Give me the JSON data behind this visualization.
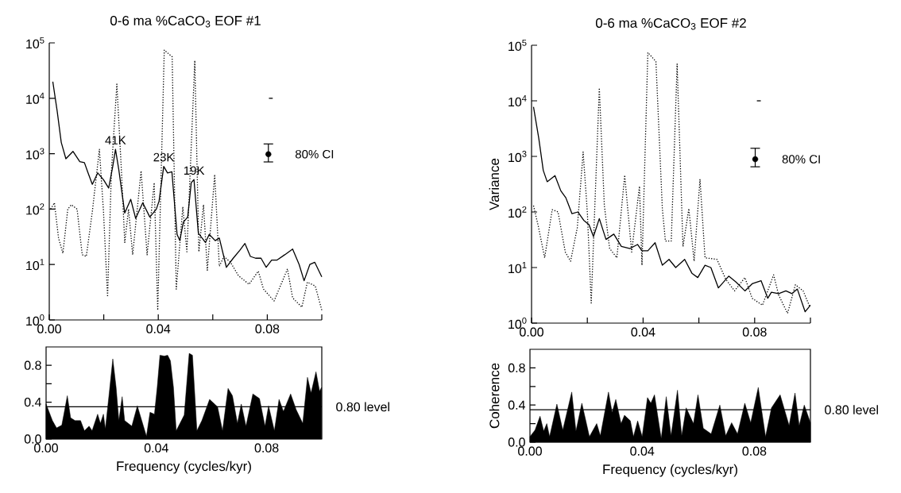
{
  "chart_data": [
    {
      "type": "line",
      "title": "0-6 ma %CaCO$_{3}$ EOF #1",
      "log": "y",
      "xlim": [
        0,
        0.1
      ],
      "ylim": [
        1,
        100000
      ],
      "xticks": [
        {
          "value": 0,
          "label": "0.00"
        },
        {
          "value": 0.02,
          "label": null
        },
        {
          "value": 0.04,
          "label": "0.04"
        },
        {
          "value": 0.06,
          "label": null
        },
        {
          "value": 0.08,
          "label": "0.08"
        },
        {
          "value": 0.1,
          "label": null
        }
      ],
      "yticks": [
        {
          "value": 1,
          "label": "10$^{0}$"
        },
        {
          "value": 10,
          "label": "10$^{1}$"
        },
        {
          "value": 100,
          "label": "10$^{2}$"
        },
        {
          "value": 1000,
          "label": "10$^{3}$"
        },
        {
          "value": 10000,
          "label": "10$^{4}$"
        },
        {
          "value": 100000,
          "label": "10$^{5}$"
        }
      ],
      "series": [
        {
          "type": "line",
          "line_style": "solid",
          "color": "#000000",
          "x": [
            0.0013,
            0.0029,
            0.0044,
            0.0061,
            0.0087,
            0.0112,
            0.0129,
            0.0141,
            0.0158,
            0.0178,
            0.0199,
            0.0218,
            0.0233,
            0.0243,
            0.0255,
            0.0277,
            0.0299,
            0.0317,
            0.0343,
            0.0369,
            0.0393,
            0.0403,
            0.042,
            0.0434,
            0.045,
            0.0469,
            0.0479,
            0.0492,
            0.0508,
            0.0521,
            0.0531,
            0.0547,
            0.0573,
            0.0587,
            0.0609,
            0.0624,
            0.065,
            0.0675,
            0.0699,
            0.0718,
            0.0738,
            0.0757,
            0.0777,
            0.0796,
            0.0816,
            0.0835,
            0.0864,
            0.0893,
            0.0917,
            0.0935,
            0.0956,
            0.0974,
            0.1
          ],
          "values": [
            20000,
            5900,
            1600,
            810,
            1100,
            720,
            690,
            470,
            280,
            450,
            340,
            240,
            590,
            1200,
            520,
            85,
            150,
            68,
            130,
            72,
            100,
            140,
            590,
            450,
            470,
            35,
            27,
            58,
            72,
            300,
            340,
            37,
            25,
            35,
            27,
            30,
            8.9,
            13,
            18,
            24,
            14,
            13,
            13,
            8.9,
            12,
            12,
            15,
            19,
            10,
            5.1,
            10,
            11,
            6.0
          ]
        },
        {
          "type": "line",
          "line_style": "dotted",
          "color": "#000000",
          "x": [
            0.0005,
            0.0019,
            0.0034,
            0.005,
            0.0068,
            0.0081,
            0.0102,
            0.0121,
            0.0136,
            0.0158,
            0.0184,
            0.0199,
            0.0214,
            0.0228,
            0.0248,
            0.0265,
            0.0277,
            0.0291,
            0.0306,
            0.0337,
            0.0359,
            0.0385,
            0.0398,
            0.0422,
            0.0451,
            0.0466,
            0.049,
            0.0505,
            0.0534,
            0.0549,
            0.0566,
            0.058,
            0.0607,
            0.0624,
            0.0641,
            0.0665,
            0.0694,
            0.0733,
            0.0767,
            0.0786,
            0.0825,
            0.0874,
            0.0893,
            0.0927,
            0.0947,
            0.0976,
            0.1
          ],
          "values": [
            100,
            130,
            30,
            16,
            100,
            120,
            100,
            15,
            14,
            90,
            1200,
            90,
            2.6,
            470,
            18000,
            470,
            25,
            100,
            15,
            490,
            15,
            300,
            1.5,
            74000,
            56000,
            3.6,
            110,
            17,
            48000,
            17,
            120,
            7.9,
            420,
            9.3,
            14,
            11,
            6.3,
            4.4,
            7.6,
            3.6,
            2.2,
            8.3,
            2.5,
            1.7,
            4.8,
            4.1,
            1.5
          ]
        },
        {
          "type": "scatter",
          "name": "80% CI",
          "marker": "circle",
          "color": "#000000",
          "x": [
            0.0804
          ],
          "values": [
            980
          ],
          "errors": [
            [
              710,
              1500
            ]
          ]
        },
        {
          "type": "line",
          "line_style": "solid",
          "color": "#000000",
          "x": [
            0.0806,
            0.082
          ],
          "values": [
            10000,
            10000
          ]
        }
      ],
      "annotations": [
        {
          "text": "41K",
          "x": 0.0243,
          "y": 1200
        },
        {
          "text": "23K",
          "x": 0.042,
          "y": 590
        },
        {
          "text": "19K",
          "x": 0.0531,
          "y": 340
        }
      ]
    },
    {
      "type": "line",
      "title": "0-6 ma %CaCO$_{3}$ EOF #2",
      "ylabel": "Variance",
      "log": "y",
      "xlim": [
        0,
        0.1
      ],
      "ylim": [
        1,
        100000
      ],
      "xticks": [
        {
          "value": 0,
          "label": "0.00"
        },
        {
          "value": 0.02,
          "label": null
        },
        {
          "value": 0.04,
          "label": "0.04"
        },
        {
          "value": 0.06,
          "label": null
        },
        {
          "value": 0.08,
          "label": "0.08"
        },
        {
          "value": 0.1,
          "label": null
        }
      ],
      "yticks": [
        {
          "value": 1,
          "label": "10$^{0}$"
        },
        {
          "value": 10,
          "label": "10$^{1}$"
        },
        {
          "value": 100,
          "label": "10$^{2}$"
        },
        {
          "value": 1000,
          "label": "10$^{3}$"
        },
        {
          "value": 10000,
          "label": "10$^{4}$"
        },
        {
          "value": 100000,
          "label": "10$^{5}$"
        }
      ],
      "series": [
        {
          "type": "line",
          "line_style": "solid",
          "color": "#000000",
          "x": [
            0.0007,
            0.0026,
            0.0042,
            0.0056,
            0.0084,
            0.0105,
            0.0123,
            0.0145,
            0.0166,
            0.0187,
            0.0206,
            0.0222,
            0.0243,
            0.0267,
            0.0295,
            0.0322,
            0.0353,
            0.038,
            0.0396,
            0.0417,
            0.0443,
            0.0469,
            0.0493,
            0.0517,
            0.0549,
            0.0575,
            0.0596,
            0.0622,
            0.0643,
            0.067,
            0.0707,
            0.0733,
            0.0765,
            0.0791,
            0.0823,
            0.0847,
            0.086,
            0.0886,
            0.0912,
            0.0934,
            0.0953,
            0.0981,
            0.1
          ],
          "values": [
            7800,
            2100,
            560,
            350,
            450,
            240,
            180,
            93,
            100,
            71,
            59,
            36,
            76,
            32,
            40,
            24,
            22,
            26,
            20,
            20,
            28,
            11,
            14,
            10,
            14,
            7.9,
            6.6,
            11,
            10,
            4.3,
            7.0,
            5.5,
            3.8,
            5.1,
            5.8,
            2.8,
            3.6,
            3.4,
            3.8,
            3.4,
            4.1,
            1.6,
            2.1
          ]
        },
        {
          "type": "line",
          "line_style": "dotted",
          "color": "#000000",
          "x": [
            0.0007,
            0.0024,
            0.0047,
            0.0074,
            0.0095,
            0.0121,
            0.014,
            0.0164,
            0.0185,
            0.02,
            0.0214,
            0.0227,
            0.0243,
            0.0261,
            0.028,
            0.0306,
            0.0334,
            0.0359,
            0.0387,
            0.0396,
            0.0417,
            0.0446,
            0.0469,
            0.048,
            0.0501,
            0.0522,
            0.0543,
            0.0564,
            0.0583,
            0.0604,
            0.0622,
            0.0665,
            0.0696,
            0.0728,
            0.0765,
            0.0791,
            0.0828,
            0.0868,
            0.0886,
            0.0918,
            0.0946,
            0.0974,
            0.0997
          ],
          "values": [
            130,
            56,
            15,
            110,
            100,
            19,
            13,
            52,
            1200,
            100,
            2.3,
            130,
            17000,
            130,
            22,
            15,
            460,
            19,
            290,
            11,
            74000,
            51000,
            115,
            30,
            30,
            46000,
            24,
            115,
            13,
            390,
            15,
            14,
            6.2,
            3.8,
            6.6,
            2.8,
            2.1,
            7.4,
            3.2,
            1.5,
            4.9,
            3.8,
            2.0
          ]
        },
        {
          "type": "scatter",
          "name": "80% CI",
          "marker": "circle",
          "color": "#000000",
          "x": [
            0.0802
          ],
          "values": [
            890
          ],
          "errors": [
            [
              650,
              1400
            ]
          ]
        },
        {
          "type": "line",
          "line_style": "solid",
          "color": "#000000",
          "x": [
            0.0808,
            0.0822
          ],
          "values": [
            10000,
            10000
          ]
        }
      ]
    },
    {
      "type": "area",
      "xlabel": "Frequency (cycles/kyr)",
      "xlim": [
        0,
        0.1
      ],
      "ylim": [
        0,
        1
      ],
      "xticks": [
        {
          "value": 0,
          "label": "0.00"
        },
        {
          "value": 0.04,
          "label": "0.04"
        },
        {
          "value": 0.08,
          "label": "0.08"
        }
      ],
      "yticks": [
        {
          "value": 0,
          "label": "0.0"
        },
        {
          "value": 0.2,
          "label": null
        },
        {
          "value": 0.4,
          "label": "0.4"
        },
        {
          "value": 0.6,
          "label": null
        },
        {
          "value": 0.8,
          "label": "0.8"
        }
      ],
      "series": [
        {
          "color": "#000000",
          "x": [
            0,
            0.0023,
            0.0038,
            0.0057,
            0.0064,
            0.0077,
            0.0089,
            0.0105,
            0.0125,
            0.0139,
            0.0156,
            0.0167,
            0.0187,
            0.0197,
            0.0208,
            0.0215,
            0.0228,
            0.0242,
            0.0254,
            0.0264,
            0.0276,
            0.0285,
            0.0311,
            0.0331,
            0.0347,
            0.0364,
            0.0377,
            0.0393,
            0.0403,
            0.0413,
            0.0429,
            0.0441,
            0.0451,
            0.0462,
            0.0472,
            0.0501,
            0.0519,
            0.0531,
            0.0547,
            0.0565,
            0.0593,
            0.0622,
            0.064,
            0.066,
            0.0676,
            0.0694,
            0.0708,
            0.0725,
            0.075,
            0.0774,
            0.0794,
            0.0807,
            0.0828,
            0.0845,
            0.0861,
            0.0887,
            0.0907,
            0.0931,
            0.0948,
            0.0961,
            0.0979,
            0.0992,
            0.0999
          ],
          "values": [
            0.38,
            0.2,
            0.12,
            0.15,
            0.26,
            0.47,
            0.23,
            0.2,
            0.2,
            0.09,
            0.14,
            0.09,
            0.27,
            0.17,
            0.27,
            0.11,
            0.47,
            0.87,
            0.56,
            0.2,
            0.46,
            0.2,
            0.14,
            0.36,
            0.2,
            0.03,
            0.29,
            0.27,
            0.56,
            0.91,
            0.9,
            0.91,
            0.85,
            0.56,
            0.09,
            0.26,
            0.93,
            0.91,
            0.09,
            0.2,
            0.43,
            0.35,
            0.09,
            0.55,
            0.47,
            0.17,
            0.38,
            0.14,
            0.49,
            0.44,
            0.14,
            0.36,
            0.09,
            0.43,
            0.3,
            0.49,
            0.32,
            0.17,
            0.67,
            0.5,
            0.73,
            0.52,
            0.56
          ]
        }
      ],
      "ref_lines": [
        {
          "axis": "y",
          "value": 0.35,
          "label": "0.80 level"
        }
      ]
    },
    {
      "type": "area",
      "xlabel": "Frequency (cycles/kyr)",
      "ylabel": "Coherence",
      "xlim": [
        0,
        0.1
      ],
      "ylim": [
        0,
        1
      ],
      "xticks": [
        {
          "value": 0,
          "label": "0.00"
        },
        {
          "value": 0.04,
          "label": "0.04"
        },
        {
          "value": 0.08,
          "label": "0.08"
        }
      ],
      "yticks": [
        {
          "value": 0,
          "label": "0.0"
        },
        {
          "value": 0.2,
          "label": null
        },
        {
          "value": 0.4,
          "label": "0.4"
        },
        {
          "value": 0.6,
          "label": null
        },
        {
          "value": 0.8,
          "label": "0.8"
        }
      ],
      "series": [
        {
          "color": "#000000",
          "x": [
            0,
            0.0018,
            0.0036,
            0.0049,
            0.006,
            0.007,
            0.0096,
            0.0117,
            0.0149,
            0.0164,
            0.0185,
            0.0212,
            0.0238,
            0.0251,
            0.028,
            0.0293,
            0.0306,
            0.0325,
            0.0337,
            0.0358,
            0.0369,
            0.0384,
            0.04,
            0.0419,
            0.0431,
            0.0444,
            0.0468,
            0.0486,
            0.0503,
            0.0526,
            0.0541,
            0.0557,
            0.0583,
            0.0599,
            0.0618,
            0.0646,
            0.0677,
            0.0698,
            0.0719,
            0.074,
            0.0766,
            0.0787,
            0.0814,
            0.084,
            0.0861,
            0.0892,
            0.0924,
            0.0945,
            0.096,
            0.0978,
            0.1
          ],
          "values": [
            0.06,
            0.13,
            0.28,
            0.12,
            0.2,
            0.06,
            0.41,
            0.13,
            0.54,
            0.12,
            0.42,
            0.06,
            0.2,
            0.07,
            0.54,
            0.32,
            0.46,
            0.2,
            0.29,
            0.23,
            0.06,
            0.23,
            0.06,
            0.48,
            0.42,
            0.51,
            0.04,
            0.49,
            0.07,
            0.56,
            0.07,
            0.37,
            0.2,
            0.51,
            0.15,
            0.09,
            0.4,
            0.07,
            0.21,
            0.09,
            0.42,
            0.21,
            0.59,
            0.06,
            0.37,
            0.51,
            0.18,
            0.53,
            0.18,
            0.4,
            0.21
          ]
        }
      ],
      "ref_lines": [
        {
          "axis": "y",
          "value": 0.35,
          "label": "0.80 level"
        }
      ]
    }
  ]
}
